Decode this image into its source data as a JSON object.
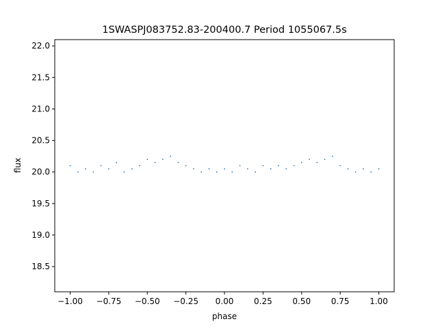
{
  "chart_data": {
    "type": "scatter",
    "title": "1SWASPJ083752.83-200400.7 Period 1055067.5s",
    "xlabel": "phase",
    "ylabel": "flux",
    "xlim": [
      -1.1,
      1.1
    ],
    "ylim": [
      18.1,
      22.1
    ],
    "xticks": [
      -1.0,
      -0.75,
      -0.5,
      -0.25,
      0.0,
      0.25,
      0.5,
      0.75,
      1.0
    ],
    "xtick_labels": [
      "−1.00",
      "−0.75",
      "−0.50",
      "−0.25",
      "0.00",
      "0.25",
      "0.50",
      "0.75",
      "1.00"
    ],
    "yticks": [
      18.5,
      19.0,
      19.5,
      20.0,
      20.5,
      21.0,
      21.5,
      22.0
    ],
    "ytick_labels": [
      "18.5",
      "19.0",
      "19.5",
      "20.0",
      "20.5",
      "21.0",
      "21.5",
      "22.0"
    ],
    "grid": false,
    "legend": "none",
    "marker_color": "#1f77b4",
    "series": [
      {
        "x": [
          -1.0,
          -0.95,
          -0.9,
          -0.85,
          -0.8,
          -0.75,
          -0.7,
          -0.65,
          -0.6,
          -0.55,
          -0.5,
          -0.45,
          -0.4,
          -0.35,
          -0.3,
          -0.25,
          -0.2,
          -0.15,
          -0.1,
          -0.05,
          0.0,
          0.05,
          0.1,
          0.15,
          0.2,
          0.25,
          0.3,
          0.35,
          0.4,
          0.45,
          0.5,
          0.55,
          0.6,
          0.65,
          0.7,
          0.75,
          0.8,
          0.85,
          0.9,
          0.95,
          1.0
        ],
        "y": [
          20.1,
          20.0,
          20.05,
          20.0,
          20.1,
          20.05,
          20.15,
          20.0,
          20.05,
          20.1,
          20.2,
          20.15,
          20.2,
          20.25,
          20.15,
          20.1,
          20.05,
          20.0,
          20.05,
          20.0,
          20.05,
          20.0,
          20.1,
          20.05,
          20.0,
          20.1,
          20.05,
          20.1,
          20.05,
          20.1,
          20.15,
          20.2,
          20.15,
          20.2,
          20.25,
          20.1,
          20.05,
          20.0,
          20.05,
          20.0,
          20.05
        ]
      }
    ]
  }
}
